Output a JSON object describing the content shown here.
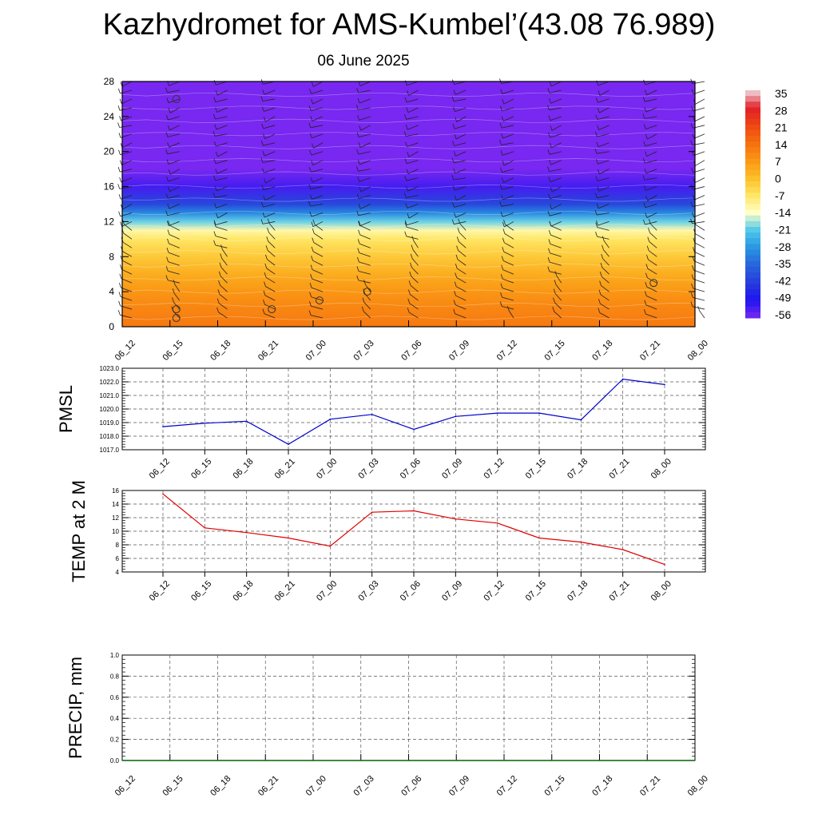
{
  "page": {
    "title": "Kazhydromet for AMS-Kumbel’(43.08 76.989)",
    "subtitle": "06 June 2025"
  },
  "chart_data": [
    {
      "type": "heatmap",
      "name": "temperature-wind-section",
      "x_ticks": [
        "06_12",
        "06_15",
        "06_18",
        "06_21",
        "07_00",
        "07_03",
        "07_06",
        "07_09",
        "07_12",
        "07_15",
        "07_18",
        "07_21",
        "08_00"
      ],
      "y_ticks": [
        0,
        4,
        8,
        12,
        16,
        20,
        24,
        28
      ],
      "ylim": [
        0,
        28
      ],
      "colorbar_labels": [
        "35",
        "28",
        "21",
        "14",
        "7",
        "0",
        "-7",
        "-14",
        "-21",
        "-28",
        "-35",
        "-42",
        "-49",
        "-56"
      ],
      "levels": [
        0,
        2,
        4,
        6,
        8,
        10,
        11,
        12,
        13,
        14,
        16,
        18,
        20,
        22,
        24,
        28
      ],
      "level_values": [
        12,
        10,
        7,
        3,
        -2,
        -7,
        -12,
        -20,
        -30,
        -40,
        -52,
        -62,
        -60,
        -58,
        -57,
        -57
      ],
      "calm_markers": [
        {
          "x": "06_15",
          "y": 26
        },
        {
          "x": "06_15",
          "y": 2
        },
        {
          "x": "06_15",
          "y": 1
        },
        {
          "x": "06_21",
          "y": 2
        },
        {
          "x": "07_00",
          "y": 3
        },
        {
          "x": "07_03",
          "y": 4
        },
        {
          "x": "07_21",
          "y": 5
        }
      ]
    },
    {
      "type": "line",
      "ylabel": "PMSL",
      "x": [
        "06_12",
        "06_15",
        "06_18",
        "06_21",
        "07_00",
        "07_03",
        "07_06",
        "07_09",
        "07_12",
        "07_15",
        "07_18",
        "07_21",
        "08_00"
      ],
      "values": [
        1018.7,
        1018.95,
        1019.1,
        1017.4,
        1019.25,
        1019.6,
        1018.5,
        1019.45,
        1019.7,
        1019.7,
        1019.2,
        1022.2,
        1021.8
      ],
      "ylim": [
        1017.0,
        1023.0
      ],
      "y_ticks": [
        "1017.0",
        "1018.0",
        "1019.0",
        "1020.0",
        "1021.0",
        "1022.0",
        "1023.0"
      ],
      "color": "#0000cc",
      "grid": true
    },
    {
      "type": "line",
      "ylabel": "TEMP at 2 M",
      "x": [
        "06_12",
        "06_15",
        "06_18",
        "06_21",
        "07_00",
        "07_03",
        "07_06",
        "07_09",
        "07_12",
        "07_15",
        "07_18",
        "07_21",
        "08_00"
      ],
      "values": [
        15.5,
        10.5,
        9.8,
        9.0,
        7.8,
        12.8,
        13.0,
        11.8,
        11.2,
        9.0,
        8.4,
        7.3,
        5.1
      ],
      "ylim": [
        4,
        16
      ],
      "y_ticks": [
        "4",
        "6",
        "8",
        "10",
        "12",
        "14",
        "16"
      ],
      "color": "#e00000",
      "grid": true
    },
    {
      "type": "line",
      "ylabel": "PRECIP, mm",
      "x": [
        "06_12",
        "06_15",
        "06_18",
        "06_21",
        "07_00",
        "07_03",
        "07_06",
        "07_09",
        "07_12",
        "07_15",
        "07_18",
        "07_21",
        "08_00"
      ],
      "values": [
        0,
        0,
        0,
        0,
        0,
        0,
        0,
        0,
        0,
        0,
        0,
        0,
        0
      ],
      "ylim": [
        0.0,
        1.0
      ],
      "y_ticks": [
        "0.0",
        "0.2",
        "0.4",
        "0.6",
        "0.8",
        "1.0"
      ],
      "color": "#006400",
      "grid": true
    }
  ]
}
